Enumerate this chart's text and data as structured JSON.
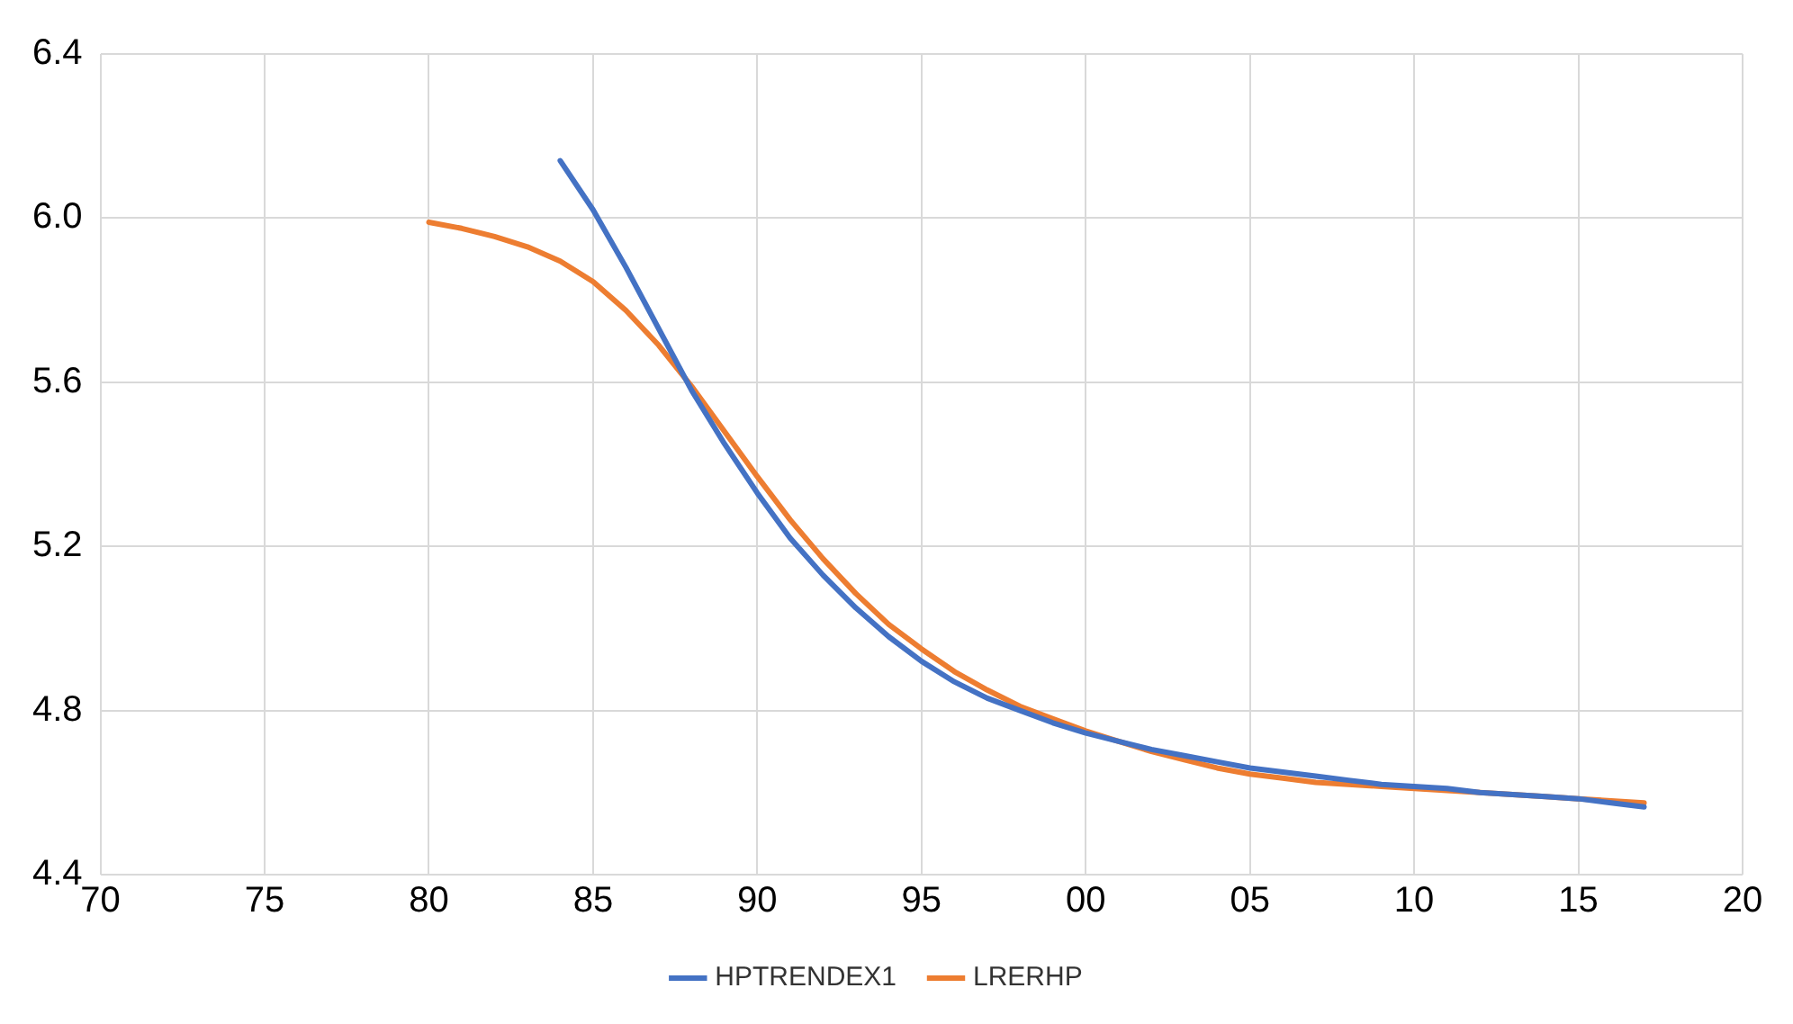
{
  "chart_data": {
    "type": "line",
    "xlim": [
      1970,
      2020
    ],
    "xticks": [
      {
        "value": 1970,
        "label": "70"
      },
      {
        "value": 1975,
        "label": "75"
      },
      {
        "value": 1980,
        "label": "80"
      },
      {
        "value": 1985,
        "label": "85"
      },
      {
        "value": 1990,
        "label": "90"
      },
      {
        "value": 1995,
        "label": "95"
      },
      {
        "value": 2000,
        "label": "00"
      },
      {
        "value": 2005,
        "label": "05"
      },
      {
        "value": 2010,
        "label": "10"
      },
      {
        "value": 2015,
        "label": "15"
      },
      {
        "value": 2020,
        "label": "20"
      }
    ],
    "ylim": [
      4.4,
      6.4
    ],
    "yticks": [
      4.4,
      4.8,
      5.2,
      5.6,
      {
        "value": 6,
        "label": "6.0"
      },
      6.4
    ],
    "grid": true,
    "legend": "bottom",
    "marker": "none",
    "line_style": "solid",
    "series": [
      {
        "name": "HPTRENDEX1",
        "color": "#4472c4",
        "x": [
          1984,
          1985,
          1986,
          1987,
          1988,
          1989,
          1990,
          1991,
          1992,
          1993,
          1994,
          1995,
          1996,
          1997,
          1998,
          1999,
          2000,
          2001,
          2002,
          2003,
          2004,
          2005,
          2006,
          2007,
          2008,
          2009,
          2010,
          2011,
          2012,
          2013,
          2014,
          2015,
          2016,
          2017
        ],
        "values": [
          6.14,
          6.02,
          5.88,
          5.73,
          5.58,
          5.45,
          5.33,
          5.22,
          5.13,
          5.05,
          4.98,
          4.92,
          4.87,
          4.83,
          4.8,
          4.77,
          4.745,
          4.725,
          4.705,
          4.69,
          4.675,
          4.66,
          4.65,
          4.64,
          4.63,
          4.62,
          4.615,
          4.61,
          4.6,
          4.595,
          4.59,
          4.585,
          4.575,
          4.565
        ]
      },
      {
        "name": "LRERHP",
        "color": "#ed7d31",
        "x": [
          1980,
          1981,
          1982,
          1983,
          1984,
          1985,
          1986,
          1987,
          1988,
          1989,
          1990,
          1991,
          1992,
          1993,
          1994,
          1995,
          1996,
          1997,
          1998,
          1999,
          2000,
          2001,
          2002,
          2003,
          2004,
          2005,
          2006,
          2007,
          2008,
          2009,
          2010,
          2011,
          2012,
          2013,
          2014,
          2015,
          2016,
          2017
        ],
        "values": [
          5.99,
          5.975,
          5.955,
          5.93,
          5.895,
          5.845,
          5.775,
          5.69,
          5.59,
          5.48,
          5.37,
          5.265,
          5.17,
          5.085,
          5.01,
          4.95,
          4.895,
          4.85,
          4.81,
          4.78,
          4.75,
          4.725,
          4.7,
          4.68,
          4.66,
          4.645,
          4.635,
          4.625,
          4.62,
          4.615,
          4.61,
          4.605,
          4.6,
          4.595,
          4.59,
          4.585,
          4.58,
          4.575
        ]
      }
    ]
  }
}
